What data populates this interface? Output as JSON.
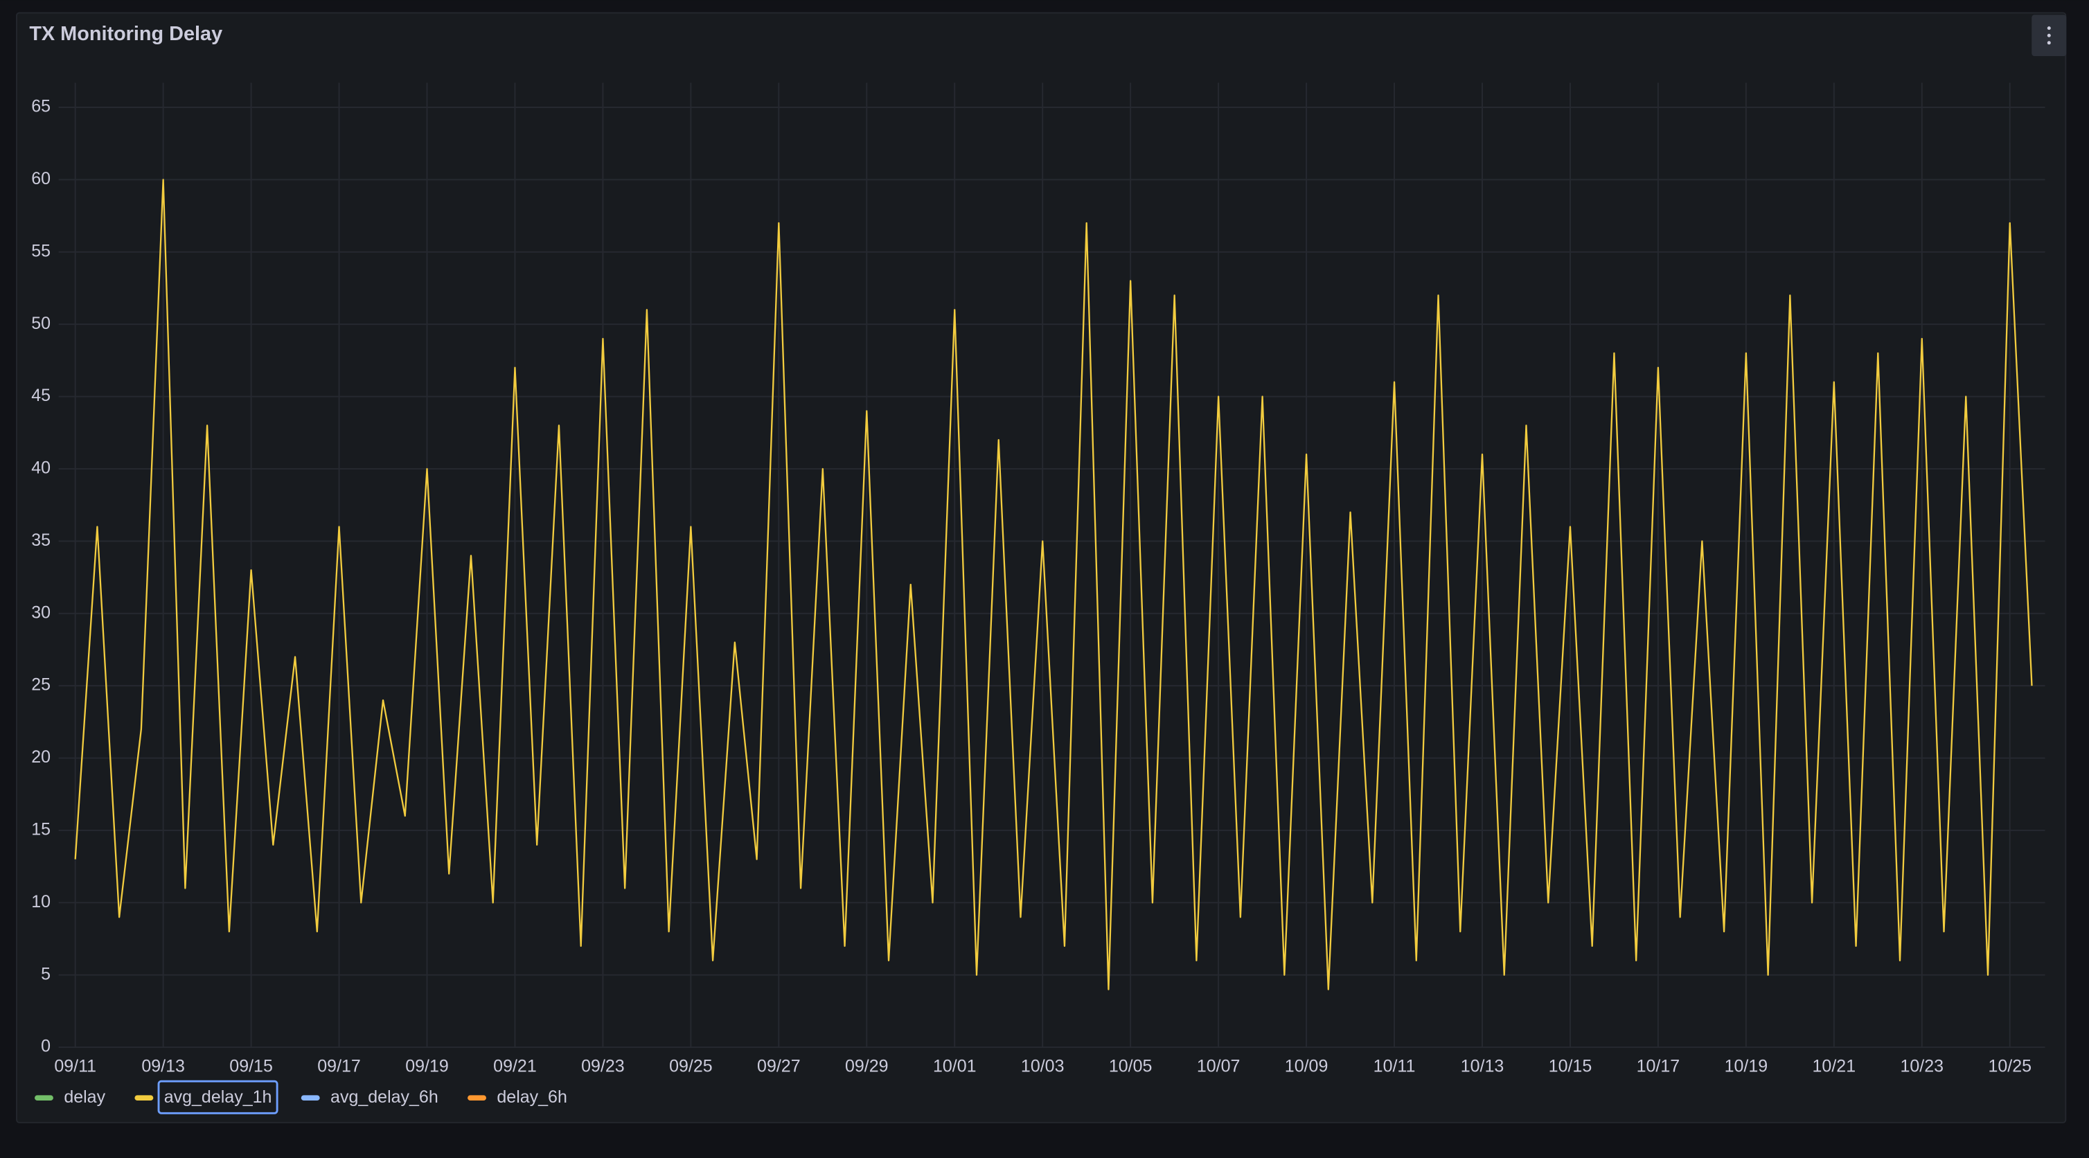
{
  "chart_data": {
    "type": "line",
    "title": "TX Monitoring Delay",
    "x": [
      0,
      0.5,
      1,
      1.5,
      2,
      2.5,
      3,
      3.5,
      4,
      4.5,
      5,
      5.5,
      6,
      6.5,
      7,
      7.5,
      8,
      8.5,
      9,
      9.5,
      10,
      10.5,
      11,
      11.5,
      12,
      12.5,
      13,
      13.5,
      14,
      14.5,
      15,
      15.5,
      16,
      16.5,
      17,
      17.5,
      18,
      18.5,
      19,
      19.5,
      20,
      20.5,
      21,
      21.5,
      22,
      22.5,
      23,
      23.5,
      24,
      24.5,
      25,
      25.5,
      26,
      26.5,
      27,
      27.5,
      28,
      28.5,
      29,
      29.5,
      30,
      30.5,
      31,
      31.5,
      32,
      32.5,
      33,
      33.5,
      34,
      34.5,
      35,
      35.5,
      36,
      36.5,
      37,
      37.5,
      38,
      38.5,
      39,
      39.5,
      40,
      40.5,
      41,
      41.5,
      42,
      42.5,
      43,
      43.5,
      44,
      44.5
    ],
    "series": [
      {
        "name": "avg_delay_1h",
        "color": "#f2cc3f",
        "values": [
          13,
          36,
          9,
          22,
          60,
          11,
          43,
          8,
          33,
          14,
          27,
          8,
          36,
          10,
          24,
          16,
          40,
          12,
          34,
          10,
          47,
          14,
          43,
          7,
          49,
          11,
          51,
          8,
          36,
          6,
          28,
          13,
          57,
          11,
          40,
          7,
          44,
          6,
          32,
          10,
          51,
          5,
          42,
          9,
          35,
          7,
          57,
          4,
          53,
          10,
          52,
          6,
          45,
          9,
          45,
          5,
          41,
          4,
          37,
          10,
          46,
          6,
          52,
          8,
          41,
          5,
          43,
          10,
          36,
          7,
          48,
          6,
          47,
          9,
          35,
          8,
          48,
          5,
          52,
          10,
          46,
          7,
          48,
          6,
          49,
          8,
          45,
          5,
          57,
          25
        ]
      }
    ],
    "legend": [
      {
        "name": "delay",
        "color": "#73bf69"
      },
      {
        "name": "avg_delay_1h",
        "color": "#f2cc3f"
      },
      {
        "name": "avg_delay_6h",
        "color": "#8ab8ff"
      },
      {
        "name": "delay_6h",
        "color": "#ff9830"
      }
    ],
    "legend_selected": "avg_delay_1h",
    "xlim": [
      -0.5,
      44.8
    ],
    "xticks": [
      {
        "value": 0,
        "label": "09/11"
      },
      {
        "value": 2,
        "label": "09/13"
      },
      {
        "value": 4,
        "label": "09/15"
      },
      {
        "value": 6,
        "label": "09/17"
      },
      {
        "value": 8,
        "label": "09/19"
      },
      {
        "value": 10,
        "label": "09/21"
      },
      {
        "value": 12,
        "label": "09/23"
      },
      {
        "value": 14,
        "label": "09/25"
      },
      {
        "value": 16,
        "label": "09/27"
      },
      {
        "value": 18,
        "label": "09/29"
      },
      {
        "value": 20,
        "label": "10/01"
      },
      {
        "value": 22,
        "label": "10/03"
      },
      {
        "value": 24,
        "label": "10/05"
      },
      {
        "value": 26,
        "label": "10/07"
      },
      {
        "value": 28,
        "label": "10/09"
      },
      {
        "value": 30,
        "label": "10/11"
      },
      {
        "value": 32,
        "label": "10/13"
      },
      {
        "value": 34,
        "label": "10/15"
      },
      {
        "value": 36,
        "label": "10/17"
      },
      {
        "value": 38,
        "label": "10/19"
      },
      {
        "value": 40,
        "label": "10/21"
      },
      {
        "value": 42,
        "label": "10/23"
      },
      {
        "value": 44,
        "label": "10/25"
      }
    ],
    "ylim": [
      0,
      66.7
    ],
    "yticks": [
      0,
      5,
      10,
      15,
      20,
      25,
      30,
      35,
      40,
      45,
      50,
      55,
      60,
      65
    ],
    "grid": true
  }
}
